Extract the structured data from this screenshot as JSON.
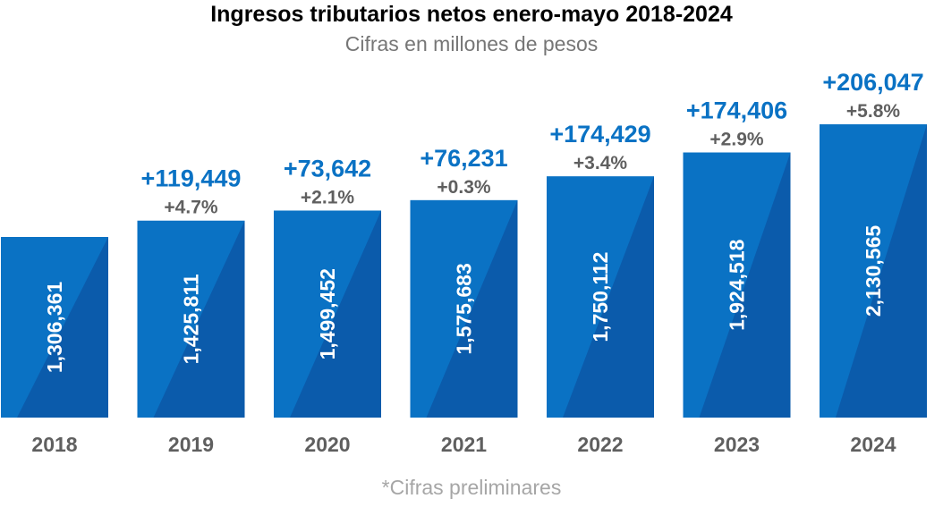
{
  "chart_data": {
    "type": "bar",
    "title": "Ingresos tributarios netos enero-mayo 2018-2024",
    "subtitle": "Cifras en millones de pesos",
    "footnote": "*Cifras preliminares",
    "categories": [
      "2018",
      "2019",
      "2020",
      "2021",
      "2022",
      "2023",
      "2024"
    ],
    "values": [
      1306361,
      1425811,
      1499452,
      1575683,
      1750112,
      1924518,
      2130565
    ],
    "value_labels": [
      "1,306,361",
      "1,425,811",
      "1,499,452",
      "1,575,683",
      "1,750,112",
      "1,924,518",
      "2,130,565"
    ],
    "increment_labels": [
      "",
      "+119,449",
      "+73,642",
      "+76,231",
      "+174,429",
      "+174,406",
      "+206,047"
    ],
    "growth_labels": [
      "",
      "+4.7%",
      "+2.1%",
      "+0.3%",
      "+3.4%",
      "+2.9%",
      "+5.8%"
    ],
    "ylim": [
      1000000,
      2200000
    ],
    "grid": false,
    "legend": "none",
    "colors": {
      "bar_main": "#0a72c4",
      "bar_shade": "#0b5bab",
      "increment_text": "#0a72c4",
      "growth_text": "#5f5f5f",
      "value_text": "#ffffff",
      "year_text": "#5f5f5f"
    }
  }
}
